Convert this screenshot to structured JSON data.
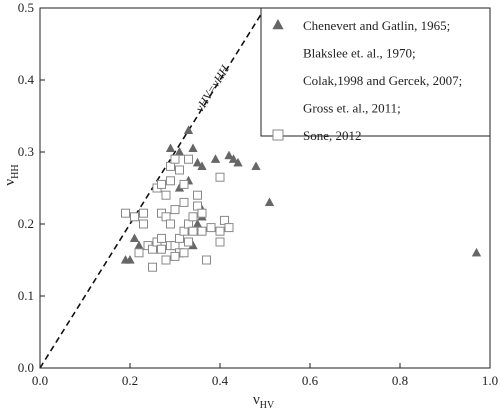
{
  "chart_data": {
    "type": "scatter",
    "xlim": [
      0,
      1.0
    ],
    "ylim": [
      0,
      0.5
    ],
    "x_ticks": [
      "0.0",
      "0.2",
      "0.4",
      "0.6",
      "0.8",
      "1.0"
    ],
    "y_ticks": [
      "0.0",
      "0.1",
      "0.2",
      "0.3",
      "0.4",
      "0.5"
    ],
    "xlabel": {
      "base": "ν",
      "sub": "HV"
    },
    "ylabel": {
      "base": "ν",
      "sub": "HH"
    },
    "annotation": "νHV=νHH",
    "grid": false,
    "legend_position": "top-right",
    "reference_line": {
      "x": [
        0,
        0.5
      ],
      "y": [
        0,
        0.5
      ]
    },
    "series": [
      {
        "name": "Chenevert and Gatlin, 1965;",
        "marker": "filled-triangle",
        "color": "#666666",
        "points": [
          [
            0.29,
            0.305
          ],
          [
            0.31,
            0.3
          ],
          [
            0.33,
            0.33
          ],
          [
            0.34,
            0.305
          ],
          [
            0.33,
            0.26
          ],
          [
            0.35,
            0.285
          ],
          [
            0.36,
            0.28
          ],
          [
            0.39,
            0.29
          ],
          [
            0.42,
            0.295
          ],
          [
            0.43,
            0.29
          ],
          [
            0.44,
            0.285
          ],
          [
            0.48,
            0.28
          ],
          [
            0.51,
            0.23
          ],
          [
            0.97,
            0.16
          ],
          [
            0.19,
            0.15
          ],
          [
            0.2,
            0.15
          ],
          [
            0.21,
            0.18
          ],
          [
            0.22,
            0.17
          ],
          [
            0.31,
            0.25
          ],
          [
            0.35,
            0.2
          ],
          [
            0.36,
            0.21
          ],
          [
            0.36,
            0.22
          ],
          [
            0.34,
            0.17
          ]
        ]
      },
      {
        "name": "Blakslee et. al., 1970;",
        "marker": "none"
      },
      {
        "name": "Colak,1998 and Gercek, 2007;",
        "marker": "none"
      },
      {
        "name": "Gross et. al., 2011;",
        "marker": "none"
      },
      {
        "name": "Sone, 2012",
        "marker": "open-square",
        "color": "#888888",
        "points": [
          [
            0.19,
            0.215
          ],
          [
            0.21,
            0.21
          ],
          [
            0.23,
            0.215
          ],
          [
            0.23,
            0.2
          ],
          [
            0.24,
            0.17
          ],
          [
            0.25,
            0.165
          ],
          [
            0.26,
            0.175
          ],
          [
            0.26,
            0.25
          ],
          [
            0.27,
            0.255
          ],
          [
            0.27,
            0.215
          ],
          [
            0.28,
            0.21
          ],
          [
            0.28,
            0.24
          ],
          [
            0.29,
            0.28
          ],
          [
            0.29,
            0.26
          ],
          [
            0.29,
            0.17
          ],
          [
            0.29,
            0.2
          ],
          [
            0.3,
            0.22
          ],
          [
            0.3,
            0.17
          ],
          [
            0.31,
            0.275
          ],
          [
            0.31,
            0.18
          ],
          [
            0.31,
            0.16
          ],
          [
            0.32,
            0.255
          ],
          [
            0.32,
            0.23
          ],
          [
            0.32,
            0.19
          ],
          [
            0.33,
            0.175
          ],
          [
            0.33,
            0.2
          ],
          [
            0.34,
            0.19
          ],
          [
            0.35,
            0.24
          ],
          [
            0.36,
            0.19
          ],
          [
            0.37,
            0.15
          ],
          [
            0.38,
            0.195
          ],
          [
            0.4,
            0.19
          ],
          [
            0.4,
            0.175
          ],
          [
            0.4,
            0.265
          ],
          [
            0.41,
            0.205
          ],
          [
            0.42,
            0.195
          ],
          [
            0.25,
            0.14
          ],
          [
            0.27,
            0.165
          ],
          [
            0.28,
            0.15
          ],
          [
            0.3,
            0.155
          ],
          [
            0.3,
            0.29
          ],
          [
            0.32,
            0.16
          ],
          [
            0.34,
            0.21
          ],
          [
            0.35,
            0.225
          ],
          [
            0.36,
            0.215
          ],
          [
            0.33,
            0.29
          ],
          [
            0.27,
            0.18
          ],
          [
            0.22,
            0.16
          ]
        ]
      }
    ]
  }
}
